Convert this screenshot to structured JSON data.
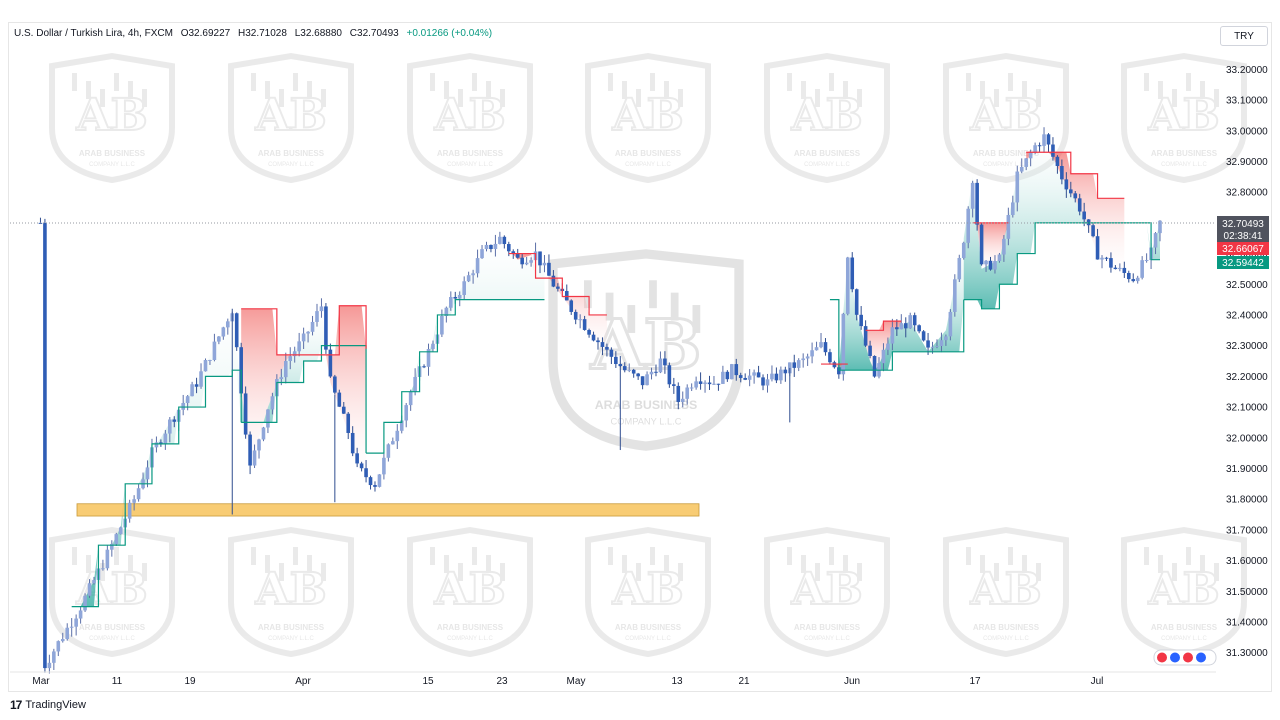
{
  "header": {
    "symbol": "U.S. Dollar / Turkish Lira, 4h, FXCM",
    "open": "O32.69227",
    "high": "H32.71028",
    "low": "L32.68880",
    "close": "C32.70493",
    "change": "+0.01266 (+0.04%)"
  },
  "currency": "TRY",
  "footer": {
    "brand": "TradingView"
  },
  "watermark": {
    "text": "ARAB BUSINESS",
    "subtext": "COMPANY L.L.C"
  },
  "price_tags": {
    "last": "32.70493",
    "countdown": "02:38:41",
    "upper": "32.66067",
    "lower": "32.59442"
  },
  "chart_data": {
    "type": "candlestick",
    "ylim": [
      31.25,
      33.25
    ],
    "y_ticks": [
      "33.20000",
      "33.10000",
      "33.00000",
      "32.90000",
      "32.80000",
      "32.70000",
      "32.60000",
      "32.50000",
      "32.40000",
      "32.30000",
      "32.20000",
      "32.10000",
      "32.00000",
      "31.90000",
      "31.80000",
      "31.70000",
      "31.60000",
      "31.50000",
      "31.40000",
      "31.30000"
    ],
    "x_ticks": [
      "Mar",
      "11",
      "19",
      "Apr",
      "15",
      "23",
      "May",
      "13",
      "21",
      "Jun",
      "17",
      "Jul"
    ],
    "series": [
      {
        "values": [
          [
            1,
            31.26
          ],
          [
            5,
            31.45
          ],
          [
            8,
            31.62
          ],
          [
            11,
            31.8
          ],
          [
            13,
            31.95
          ],
          [
            15,
            32.05
          ],
          [
            18,
            32.18
          ],
          [
            20,
            32.3
          ],
          [
            22,
            32.42
          ],
          [
            24,
            31.9
          ],
          [
            26,
            32.1
          ],
          [
            28,
            32.25
          ],
          [
            30,
            32.32
          ],
          [
            32,
            32.43
          ],
          [
            33,
            32.18
          ],
          [
            35,
            32.02
          ],
          [
            36,
            31.9
          ],
          [
            38,
            31.85
          ],
          [
            40,
            32.0
          ],
          [
            42,
            32.15
          ],
          [
            44,
            32.28
          ],
          [
            46,
            32.42
          ],
          [
            48,
            32.5
          ],
          [
            50,
            32.6
          ],
          [
            52,
            32.65
          ],
          [
            54,
            32.58
          ],
          [
            56,
            32.6
          ],
          [
            58,
            32.5
          ],
          [
            60,
            32.42
          ],
          [
            62,
            32.35
          ],
          [
            64,
            32.28
          ],
          [
            66,
            32.22
          ],
          [
            68,
            32.18
          ],
          [
            70,
            32.25
          ],
          [
            72,
            32.12
          ],
          [
            74,
            32.2
          ],
          [
            76,
            32.18
          ],
          [
            78,
            32.22
          ],
          [
            80,
            32.2
          ],
          [
            82,
            32.18
          ],
          [
            84,
            32.22
          ],
          [
            86,
            32.25
          ],
          [
            88,
            32.3
          ],
          [
            90,
            32.22
          ],
          [
            91,
            32.6
          ],
          [
            92,
            32.4
          ],
          [
            94,
            32.2
          ],
          [
            96,
            32.35
          ],
          [
            98,
            32.38
          ],
          [
            100,
            32.28
          ],
          [
            102,
            32.35
          ],
          [
            104,
            32.65
          ],
          [
            105,
            32.85
          ],
          [
            106,
            32.55
          ],
          [
            108,
            32.58
          ],
          [
            110,
            32.85
          ],
          [
            112,
            32.95
          ],
          [
            113,
            32.98
          ],
          [
            115,
            32.85
          ],
          [
            117,
            32.75
          ],
          [
            119,
            32.6
          ],
          [
            121,
            32.55
          ],
          [
            123,
            32.52
          ],
          [
            125,
            32.6
          ],
          [
            126,
            32.7
          ]
        ],
        "trail_upper": [
          [
            23,
            32.42
          ],
          [
            27,
            32.27
          ],
          [
            34,
            32.43
          ],
          [
            37,
            32.29
          ],
          [
            53,
            32.6
          ],
          [
            56,
            32.52
          ],
          [
            59,
            32.46
          ],
          [
            62,
            32.4
          ],
          [
            63,
            32.4
          ],
          [
            88,
            32.24
          ],
          [
            91,
            32.24
          ],
          [
            93,
            32.35
          ],
          [
            95,
            32.38
          ],
          [
            105,
            32.7
          ],
          [
            108,
            32.7
          ],
          [
            111,
            32.93
          ],
          [
            116,
            32.86
          ],
          [
            119,
            32.78
          ],
          [
            121,
            32.78
          ]
        ],
        "trail_lower": [
          [
            4,
            31.45
          ],
          [
            7,
            31.65
          ],
          [
            10,
            31.85
          ],
          [
            13,
            31.98
          ],
          [
            16,
            32.1
          ],
          [
            19,
            32.2
          ],
          [
            22,
            32.22
          ],
          [
            23,
            32.05
          ],
          [
            25,
            32.05
          ],
          [
            27,
            32.18
          ],
          [
            30,
            32.25
          ],
          [
            32,
            32.3
          ],
          [
            37,
            31.95
          ],
          [
            39,
            32.05
          ],
          [
            41,
            32.15
          ],
          [
            43,
            32.28
          ],
          [
            45,
            32.4
          ],
          [
            47,
            32.45
          ],
          [
            50,
            32.45
          ],
          [
            52,
            32.45
          ],
          [
            56,
            32.45
          ],
          [
            90,
            32.22
          ],
          [
            94,
            32.22
          ],
          [
            96,
            32.28
          ],
          [
            102,
            32.28
          ],
          [
            104,
            32.45
          ],
          [
            106,
            32.42
          ],
          [
            108,
            32.5
          ],
          [
            110,
            32.6
          ],
          [
            112,
            32.7
          ],
          [
            125,
            32.58
          ]
        ]
      }
    ],
    "zone": {
      "y_from": 31.745,
      "y_to": 31.785,
      "x_from": "Mar",
      "x_to": "13"
    }
  }
}
